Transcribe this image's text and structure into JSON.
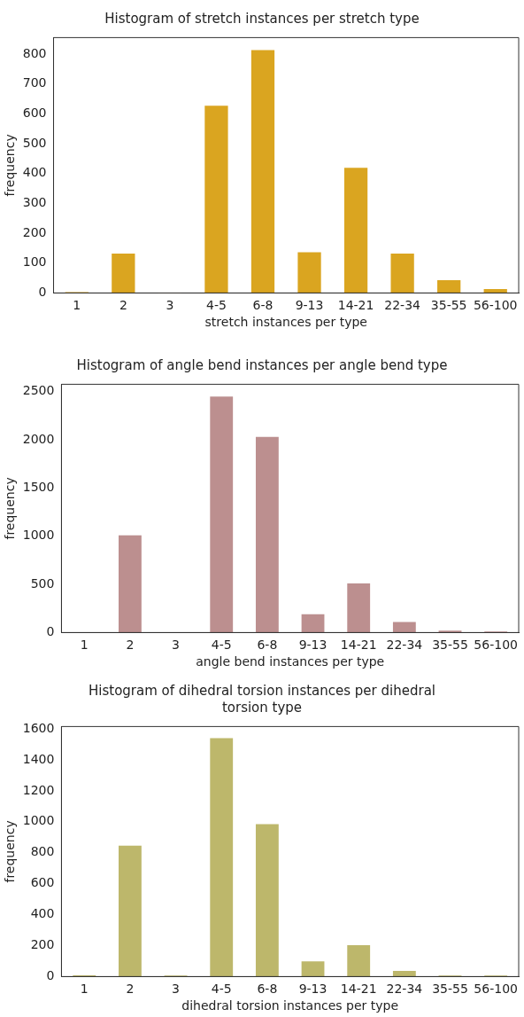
{
  "chart_data": [
    {
      "type": "bar",
      "title": "Histogram of stretch instances per stretch type",
      "xlabel": "stretch instances per type",
      "ylabel": "frequency",
      "categories": [
        "1",
        "2",
        "3",
        "4-5",
        "6-8",
        "9-13",
        "14-21",
        "22-34",
        "35-55",
        "56-100"
      ],
      "values": [
        3,
        132,
        1,
        627,
        813,
        136,
        419,
        132,
        43,
        13
      ],
      "color": "#daa520",
      "ylim": [
        0,
        855
      ],
      "yticks": [
        0,
        100,
        200,
        300,
        400,
        500,
        600,
        700,
        800
      ],
      "grid": false,
      "legend": false
    },
    {
      "type": "bar",
      "title": "Histogram of angle bend instances per angle bend type",
      "xlabel": "angle bend instances per type",
      "ylabel": "frequency",
      "categories": [
        "1",
        "2",
        "3",
        "4-5",
        "6-8",
        "9-13",
        "14-21",
        "22-34",
        "35-55",
        "56-100"
      ],
      "values": [
        0,
        1010,
        0,
        2450,
        2030,
        190,
        510,
        110,
        20,
        10
      ],
      "color": "#bc8f8f",
      "ylim": [
        0,
        2577
      ],
      "yticks": [
        0,
        500,
        1000,
        1500,
        2000,
        2500
      ],
      "grid": false,
      "legend": false
    },
    {
      "type": "bar",
      "title": "Histogram of dihedral torsion instances per dihedral torsion type",
      "xlabel": "dihedral torsion instances per type",
      "ylabel": "frequency",
      "categories": [
        "1",
        "2",
        "3",
        "4-5",
        "6-8",
        "9-13",
        "14-21",
        "22-34",
        "35-55",
        "56-100"
      ],
      "values": [
        8,
        845,
        6,
        1540,
        985,
        98,
        203,
        36,
        6,
        6
      ],
      "color": "#bdb76b",
      "ylim": [
        0,
        1615
      ],
      "yticks": [
        0,
        200,
        400,
        600,
        800,
        1000,
        1200,
        1400,
        1600
      ],
      "grid": false,
      "legend": false
    }
  ]
}
